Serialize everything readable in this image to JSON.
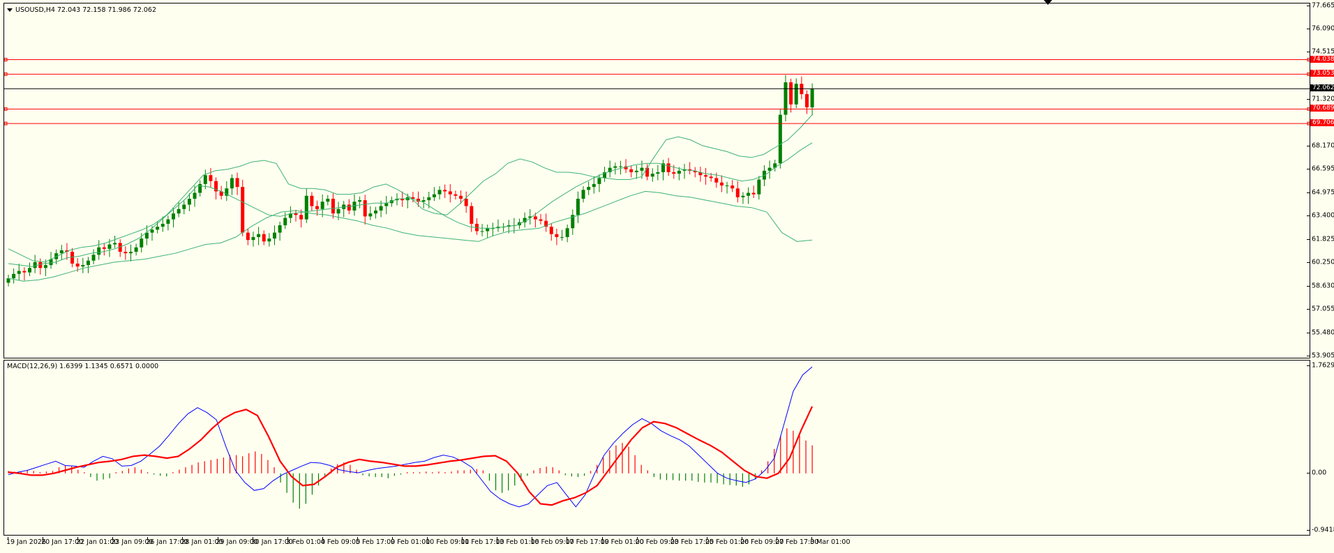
{
  "symbol_header": "USOUSD,H4  72.043 72.158 71.986 72.062",
  "macd_header": "MACD(12,26,9) 1.6399 1.1345 0.6571 0.0000",
  "colors": {
    "background": "#fffff0",
    "bull_candle": "#008000",
    "bear_candle": "#ff0000",
    "bollinger": "#3cb371",
    "hline": "#ff0000",
    "current_price_line": "#000000",
    "macd_line": "#0000ff",
    "signal_line": "#ff0000",
    "hist_positive": "#ff0000",
    "hist_negative": "#008000"
  },
  "price_axis": {
    "min": 53.905,
    "max": 77.66,
    "ticks": [
      "77.665",
      "76.090",
      "74.515",
      "71.320",
      "68.170",
      "66.595",
      "64.975",
      "63.400",
      "61.825",
      "60.250",
      "58.630",
      "57.055",
      "55.480",
      "53.905"
    ]
  },
  "price_lines": [
    {
      "price": 74.038,
      "label": "74.038",
      "color": "#ff0000"
    },
    {
      "price": 73.053,
      "label": "73.053",
      "color": "#ff0000"
    },
    {
      "price": 72.062,
      "label": "72.062",
      "color": "#000000"
    },
    {
      "price": 70.689,
      "label": "70.689",
      "color": "#ff0000"
    },
    {
      "price": 69.706,
      "label": "69.706",
      "color": "#ff0000"
    }
  ],
  "macd_axis": {
    "max": 1.7629,
    "min": -0.9418,
    "ticks": [
      "1.7629",
      "0.00",
      "-0.9418"
    ]
  },
  "time_labels": [
    "19 Jan 2026",
    "20 Jan 17:00",
    "22 Jan 01:00",
    "23 Jan 09:00",
    "26 Jan 17:00",
    "28 Jan 01:00",
    "29 Jan 09:00",
    "30 Jan 17:00",
    "3 Feb 01:00",
    "4 Feb 09:00",
    "5 Feb 17:00",
    "9 Feb 01:00",
    "10 Feb 09:00",
    "11 Feb 17:00",
    "13 Feb 01:00",
    "16 Feb 09:00",
    "17 Feb 17:00",
    "19 Feb 01:00",
    "20 Feb 09:00",
    "23 Feb 17:00",
    "25 Feb 01:00",
    "26 Feb 09:00",
    "27 Feb 17:00",
    "3 Mar 01:00"
  ],
  "chart_data": {
    "type": "candlestick",
    "symbol": "USOUSD",
    "timeframe": "H4",
    "close_series": [
      59.2,
      59.5,
      59.7,
      59.6,
      59.9,
      60.3,
      59.9,
      60.1,
      60.5,
      60.9,
      61.1,
      61.0,
      60.2,
      60.0,
      60.1,
      60.4,
      60.8,
      61.3,
      61.2,
      61.5,
      61.6,
      61.0,
      60.9,
      61.0,
      61.3,
      61.9,
      62.3,
      62.5,
      62.7,
      62.9,
      63.2,
      63.6,
      63.9,
      64.2,
      64.6,
      65.0,
      65.6,
      66.2,
      65.8,
      65.1,
      64.8,
      65.3,
      66.0,
      65.4,
      62.3,
      61.8,
      62.0,
      62.2,
      61.7,
      61.9,
      62.3,
      62.8,
      63.3,
      63.6,
      63.5,
      63.2,
      64.8,
      64.1,
      63.9,
      64.4,
      64.6,
      63.6,
      63.9,
      64.2,
      63.8,
      64.4,
      64.5,
      63.4,
      63.6,
      63.8,
      64.1,
      64.3,
      64.5,
      64.6,
      64.5,
      64.7,
      64.6,
      64.4,
      64.5,
      64.7,
      64.9,
      65.2,
      65.1,
      64.9,
      64.8,
      64.6,
      64.1,
      62.9,
      62.4,
      62.4,
      62.6,
      62.6,
      62.7,
      62.7,
      62.8,
      62.8,
      63.0,
      63.3,
      63.4,
      63.2,
      63.1,
      62.7,
      62.2,
      62.0,
      62.0,
      62.6,
      63.5,
      64.6,
      65.2,
      65.4,
      65.6,
      66.0,
      66.4,
      66.7,
      66.8,
      66.8,
      66.6,
      66.4,
      66.5,
      66.7,
      66.1,
      66.3,
      66.4,
      67.0,
      66.4,
      66.3,
      66.5,
      66.6,
      66.5,
      66.4,
      66.2,
      66.1,
      66.0,
      65.7,
      65.5,
      65.5,
      65.3,
      64.7,
      64.8,
      65.0,
      64.9,
      65.9,
      66.5,
      66.7,
      67.0,
      70.3,
      72.5,
      71.0,
      72.4,
      71.7,
      70.8,
      72.06
    ],
    "bollinger_upper": [
      61.2,
      60.8,
      60.4,
      60.3,
      60.7,
      61.1,
      61.3,
      61.4,
      61.6,
      61.9,
      62.2,
      62.5,
      62.9,
      63.5,
      64.4,
      65.3,
      66.2,
      66.5,
      66.6,
      66.8,
      67.1,
      67.2,
      67.0,
      65.6,
      65.3,
      65.3,
      65.2,
      64.9,
      64.9,
      65.0,
      65.4,
      65.6,
      65.2,
      64.7,
      63.9,
      63.6,
      63.5,
      64.2,
      65.0,
      65.8,
      66.3,
      67.0,
      67.3,
      67.1,
      66.7,
      66.4,
      66.4,
      66.3,
      66.1,
      66.0,
      65.9,
      65.9,
      66.1,
      67.4,
      68.6,
      68.8,
      68.6,
      68.2,
      68.0,
      67.8,
      67.5,
      67.4,
      67.6,
      68.1,
      68.6,
      69.4,
      70.3
    ],
    "bollinger_middle": [
      60.2,
      60.1,
      60.0,
      60.2,
      60.3,
      60.6,
      60.7,
      60.9,
      61.0,
      61.2,
      61.5,
      61.9,
      62.5,
      63.2,
      63.9,
      64.6,
      65.5,
      65.4,
      65.1,
      64.7,
      64.3,
      63.9,
      63.5,
      63.4,
      63.6,
      63.7,
      63.8,
      63.9,
      64.0,
      64.1,
      64.2,
      64.3,
      64.3,
      64.6,
      64.6,
      64.4,
      63.9,
      63.4,
      63.0,
      62.7,
      62.6,
      62.6,
      62.7,
      62.8,
      63.2,
      63.8,
      64.4,
      64.9,
      65.4,
      65.8,
      66.2,
      66.5,
      66.7,
      66.9,
      67.0,
      67.0,
      66.8,
      66.6,
      66.5,
      66.3,
      66.2,
      66.0,
      65.8,
      65.9,
      66.2,
      66.8,
      67.3,
      67.9,
      68.4
    ],
    "bollinger_lower": [
      59.2,
      59.0,
      59.1,
      59.3,
      59.6,
      59.9,
      60.1,
      60.3,
      60.4,
      60.5,
      60.7,
      60.9,
      61.2,
      61.5,
      61.6,
      62.0,
      62.7,
      63.3,
      63.7,
      63.8,
      63.6,
      63.5,
      63.3,
      63.1,
      62.8,
      62.6,
      62.3,
      62.1,
      62.0,
      61.9,
      61.8,
      61.7,
      62.1,
      62.4,
      62.5,
      62.6,
      63.0,
      63.3,
      63.6,
      64.0,
      64.4,
      64.8,
      65.1,
      65.0,
      64.8,
      64.7,
      64.5,
      64.3,
      64.1,
      64.0,
      63.7,
      62.3,
      61.7,
      61.8
    ],
    "macd_line": [
      -0.02,
      0.02,
      0.05,
      0.1,
      0.15,
      0.2,
      0.13,
      0.12,
      0.1,
      0.2,
      0.28,
      0.24,
      0.12,
      0.13,
      0.2,
      0.32,
      0.45,
      0.63,
      0.82,
      0.98,
      1.08,
      1.0,
      0.88,
      0.44,
      0.05,
      -0.15,
      -0.28,
      -0.25,
      -0.12,
      -0.02,
      0.05,
      0.12,
      0.18,
      0.17,
      0.13,
      0.06,
      0.03,
      0.01,
      0.05,
      0.08,
      0.1,
      0.12,
      0.15,
      0.18,
      0.2,
      0.26,
      0.3,
      0.27,
      0.2,
      0.1,
      -0.1,
      -0.3,
      -0.42,
      -0.5,
      -0.55,
      -0.5,
      -0.35,
      -0.2,
      -0.15,
      -0.35,
      -0.55,
      -0.35,
      0.0,
      0.3,
      0.5,
      0.66,
      0.8,
      0.9,
      0.82,
      0.7,
      0.62,
      0.55,
      0.45,
      0.3,
      0.15,
      0.0,
      -0.08,
      -0.12,
      -0.15,
      -0.09,
      0.05,
      0.25,
      0.8,
      1.35,
      1.62,
      1.75
    ],
    "signal_line": [
      0.02,
      0.0,
      -0.03,
      -0.03,
      0.0,
      0.05,
      0.1,
      0.14,
      0.18,
      0.2,
      0.23,
      0.28,
      0.3,
      0.28,
      0.25,
      0.28,
      0.4,
      0.55,
      0.74,
      0.9,
      1.0,
      1.05,
      0.95,
      0.6,
      0.2,
      -0.05,
      -0.2,
      -0.18,
      -0.05,
      0.1,
      0.18,
      0.23,
      0.2,
      0.18,
      0.15,
      0.12,
      0.12,
      0.14,
      0.17,
      0.2,
      0.22,
      0.25,
      0.28,
      0.29,
      0.2,
      0.0,
      -0.3,
      -0.5,
      -0.52,
      -0.45,
      -0.4,
      -0.32,
      -0.2,
      0.05,
      0.3,
      0.55,
      0.75,
      0.85,
      0.82,
      0.75,
      0.65,
      0.55,
      0.46,
      0.35,
      0.2,
      0.05,
      -0.05,
      -0.08,
      0.0,
      0.25,
      0.7,
      1.1
    ],
    "macd_histogram": [
      0.04,
      0.03,
      0.03,
      0.05,
      0.04,
      0.02,
      0.03,
      0.04,
      0.1,
      0.13,
      0.12,
      0.06,
      0.02,
      -0.06,
      -0.12,
      -0.1,
      -0.08,
      0.02,
      0.04,
      0.08,
      0.1,
      0.06,
      0.02,
      -0.02,
      -0.04,
      -0.05,
      0.02,
      0.06,
      0.1,
      0.14,
      0.18,
      0.2,
      0.22,
      0.24,
      0.26,
      0.3,
      0.3,
      0.28,
      0.33,
      0.36,
      0.32,
      0.22,
      0.1,
      -0.15,
      -0.32,
      -0.48,
      -0.58,
      -0.5,
      -0.35,
      -0.2,
      -0.04,
      0.08,
      0.15,
      0.18,
      0.14,
      0.06,
      -0.03,
      -0.05,
      -0.06,
      -0.06,
      -0.08,
      -0.04,
      -0.02,
      0.02,
      0.02,
      0.02,
      0.03,
      0.02,
      0.03,
      0.02,
      0.03,
      0.05,
      0.05,
      0.06,
      0.07,
      0.05,
      -0.12,
      -0.28,
      -0.32,
      -0.28,
      -0.2,
      -0.12,
      -0.04,
      0.05,
      0.09,
      0.11,
      0.1,
      0.05,
      -0.03,
      -0.05,
      -0.06,
      -0.04,
      0.04,
      0.14,
      0.26,
      0.38,
      0.46,
      0.5,
      0.44,
      0.3,
      0.14,
      0.05,
      -0.06,
      -0.1,
      -0.11,
      -0.11,
      -0.12,
      -0.12,
      -0.12,
      -0.14,
      -0.15,
      -0.15,
      -0.16,
      -0.18,
      -0.19,
      -0.2,
      -0.22,
      -0.18,
      -0.1,
      0.05,
      0.2,
      0.4,
      0.62,
      0.74,
      0.7,
      0.62,
      0.54,
      0.46
    ]
  }
}
